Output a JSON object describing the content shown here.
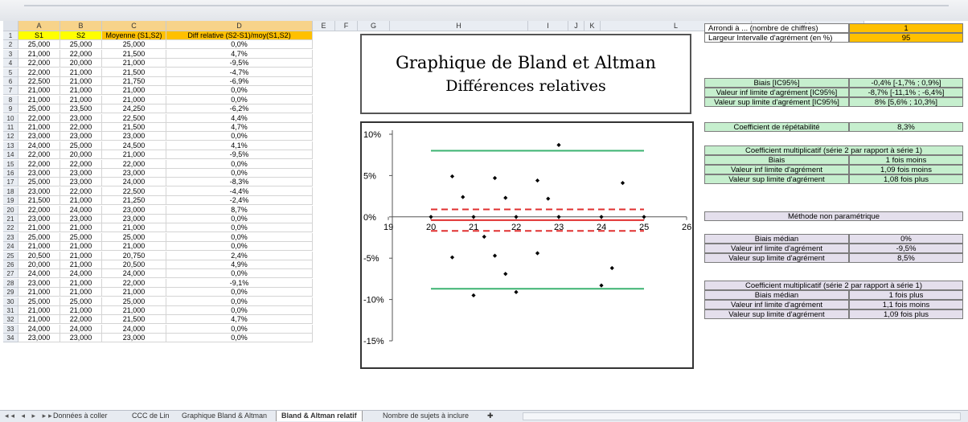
{
  "columns": [
    "A",
    "B",
    "C",
    "D",
    "E",
    "F",
    "G",
    "H",
    "I",
    "J",
    "K",
    "L",
    "M"
  ],
  "sheet": {
    "headers": [
      "S1",
      "S2",
      "Moyenne (S1,S2)",
      "Diff relative (S2-S1)/moy(S1,S2)"
    ],
    "rows": [
      [
        "25,000",
        "25,000",
        "25,000",
        "0,0%"
      ],
      [
        "21,000",
        "22,000",
        "21,500",
        "4,7%"
      ],
      [
        "22,000",
        "20,000",
        "21,000",
        "-9,5%"
      ],
      [
        "22,000",
        "21,000",
        "21,500",
        "-4,7%"
      ],
      [
        "22,500",
        "21,000",
        "21,750",
        "-6,9%"
      ],
      [
        "21,000",
        "21,000",
        "21,000",
        "0,0%"
      ],
      [
        "21,000",
        "21,000",
        "21,000",
        "0,0%"
      ],
      [
        "25,000",
        "23,500",
        "24,250",
        "-6,2%"
      ],
      [
        "22,000",
        "23,000",
        "22,500",
        "4,4%"
      ],
      [
        "21,000",
        "22,000",
        "21,500",
        "4,7%"
      ],
      [
        "23,000",
        "23,000",
        "23,000",
        "0,0%"
      ],
      [
        "24,000",
        "25,000",
        "24,500",
        "4,1%"
      ],
      [
        "22,000",
        "20,000",
        "21,000",
        "-9,5%"
      ],
      [
        "22,000",
        "22,000",
        "22,000",
        "0,0%"
      ],
      [
        "23,000",
        "23,000",
        "23,000",
        "0,0%"
      ],
      [
        "25,000",
        "23,000",
        "24,000",
        "-8,3%"
      ],
      [
        "23,000",
        "22,000",
        "22,500",
        "-4,4%"
      ],
      [
        "21,500",
        "21,000",
        "21,250",
        "-2,4%"
      ],
      [
        "22,000",
        "24,000",
        "23,000",
        "8,7%"
      ],
      [
        "23,000",
        "23,000",
        "23,000",
        "0,0%"
      ],
      [
        "21,000",
        "21,000",
        "21,000",
        "0,0%"
      ],
      [
        "25,000",
        "25,000",
        "25,000",
        "0,0%"
      ],
      [
        "21,000",
        "21,000",
        "21,000",
        "0,0%"
      ],
      [
        "20,500",
        "21,000",
        "20,750",
        "2,4%"
      ],
      [
        "20,000",
        "21,000",
        "20,500",
        "4,9%"
      ],
      [
        "24,000",
        "24,000",
        "24,000",
        "0,0%"
      ],
      [
        "23,000",
        "21,000",
        "22,000",
        "-9,1%"
      ],
      [
        "21,000",
        "21,000",
        "21,000",
        "0,0%"
      ],
      [
        "25,000",
        "25,000",
        "25,000",
        "0,0%"
      ],
      [
        "21,000",
        "21,000",
        "21,000",
        "0,0%"
      ],
      [
        "21,000",
        "22,000",
        "21,500",
        "4,7%"
      ],
      [
        "24,000",
        "24,000",
        "24,000",
        "0,0%"
      ],
      [
        "23,000",
        "23,000",
        "23,000",
        "0,0%"
      ]
    ]
  },
  "title": {
    "line1": "Graphique de Bland et Altman",
    "line2": "Différences relatives"
  },
  "settings": {
    "arrondi_label": "Arrondi à ... (nombre de chiffres)",
    "arrondi_value": "1",
    "largeur_label": "Largeur Intervalle d'agrément (en %)",
    "largeur_value": "95"
  },
  "biais_table": [
    [
      "Biais [IC95%]",
      "-0,4% [-1,7% ; 0,9%]"
    ],
    [
      "Valeur inf limite d'agrément [IC95%]",
      "-8,7% [-11,1% ; -6,4%]"
    ],
    [
      "Valeur sup limite d'agrément [IC95%]",
      "8% [5,6% ; 10,3%]"
    ]
  ],
  "repetabilite": [
    "Coefficient de répétabilité",
    "8,3%"
  ],
  "mult1": {
    "header": "Coefficient multiplicatif (série 2 par rapport à série 1)",
    "rows": [
      [
        "Biais",
        "1 fois moins"
      ],
      [
        "Valeur inf limite d'agrément",
        "1,09 fois moins"
      ],
      [
        "Valeur sup limite d'agrément",
        "1,08 fois plus"
      ]
    ]
  },
  "nonparam_header": "Méthode non paramétrique",
  "nonparam": [
    [
      "Biais médian",
      "0%"
    ],
    [
      "Valeur inf limite d'agrément",
      "-9,5%"
    ],
    [
      "Valeur sup limite d'agrément",
      "8,5%"
    ]
  ],
  "mult2": {
    "header": "Coefficient multiplicatif (série 2 par rapport à série 1)",
    "rows": [
      [
        "Biais médian",
        "1 fois plus"
      ],
      [
        "Valeur inf limite d'agrément",
        "1,1 fois moins"
      ],
      [
        "Valeur sup limite d'agrément",
        "1,09 fois plus"
      ]
    ]
  },
  "tabs": [
    "Données à coller",
    "CCC de Lin",
    "Graphique Bland & Altman",
    "Bland & Altman relatif",
    "Nombre de sujets à inclure"
  ],
  "active_tab": "Bland & Altman relatif",
  "chart_data": {
    "type": "scatter",
    "x_ticks": [
      "19",
      "20",
      "21",
      "22",
      "23",
      "24",
      "25",
      "26"
    ],
    "y_ticks": [
      "10%",
      "5%",
      "0%",
      "-5%",
      "-10%",
      "-15%"
    ],
    "xlim": [
      19,
      26
    ],
    "ylim": [
      -15,
      10
    ],
    "points": [
      {
        "x": 25.0,
        "y": 0.0
      },
      {
        "x": 21.5,
        "y": 4.7
      },
      {
        "x": 21.0,
        "y": -9.5
      },
      {
        "x": 21.5,
        "y": -4.7
      },
      {
        "x": 21.75,
        "y": -6.9
      },
      {
        "x": 21.0,
        "y": 0.0
      },
      {
        "x": 24.25,
        "y": -6.2
      },
      {
        "x": 22.5,
        "y": 4.4
      },
      {
        "x": 23.0,
        "y": 0.0
      },
      {
        "x": 24.5,
        "y": 4.1
      },
      {
        "x": 22.0,
        "y": 0.0
      },
      {
        "x": 24.0,
        "y": -8.3
      },
      {
        "x": 22.5,
        "y": -4.4
      },
      {
        "x": 21.25,
        "y": -2.4
      },
      {
        "x": 23.0,
        "y": 8.7
      },
      {
        "x": 20.75,
        "y": 2.4
      },
      {
        "x": 20.5,
        "y": 4.9
      },
      {
        "x": 24.0,
        "y": 0.0
      },
      {
        "x": 22.0,
        "y": -9.1
      },
      {
        "x": 20.0,
        "y": 0.0
      },
      {
        "x": 20.5,
        "y": -4.9
      },
      {
        "x": 21.75,
        "y": 2.3
      },
      {
        "x": 22.75,
        "y": 2.2
      }
    ],
    "bias": -0.4,
    "bias_ci": [
      -1.7,
      0.9
    ],
    "loa": [
      -8.7,
      8.0
    ],
    "line_x_range": [
      20,
      25
    ]
  }
}
